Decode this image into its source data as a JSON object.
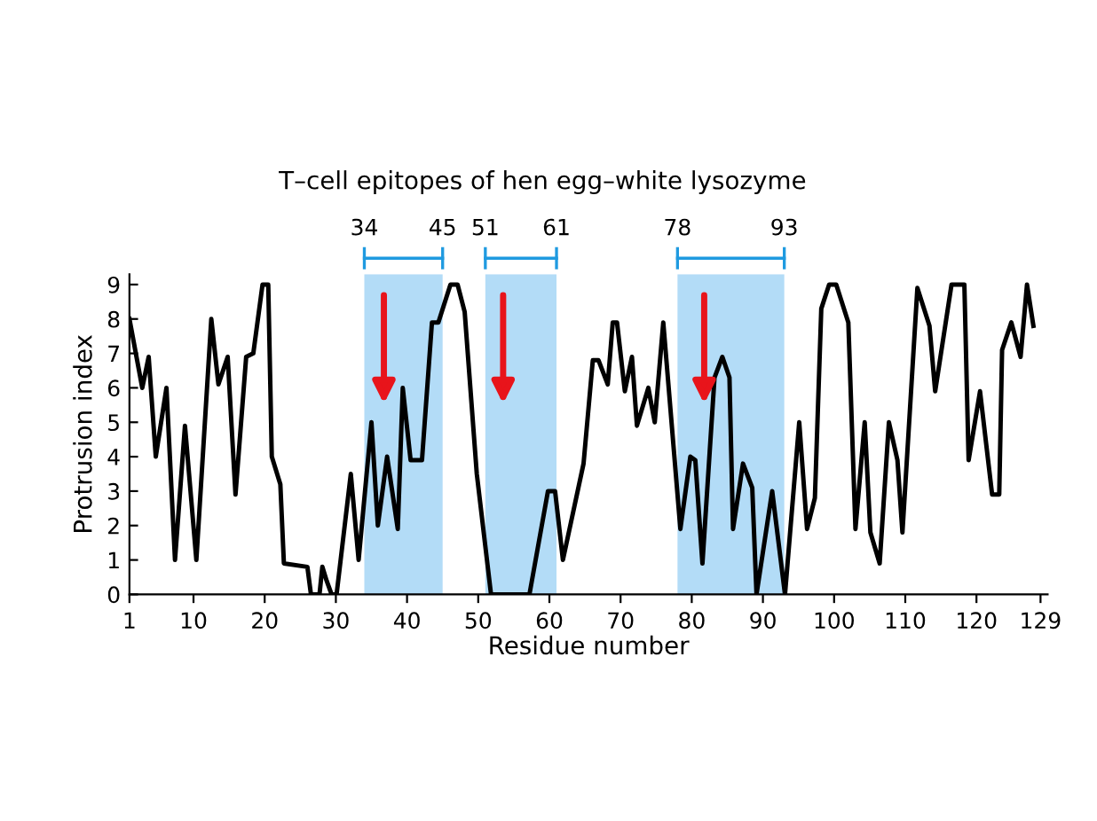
{
  "chart_data": {
    "type": "line",
    "title": "T–cell epitopes of hen egg–white lysozyme",
    "xlabel": "Residue number",
    "ylabel": "Protrusion index",
    "x": [
      1.0,
      2.8,
      3.7,
      4.7,
      6.2,
      7.4,
      8.8,
      10.4,
      12.5,
      13.5,
      14.8,
      15.9,
      17.4,
      18.4,
      19.7,
      20.5,
      21.0,
      22.2,
      22.7,
      26.0,
      26.5,
      27.7,
      28.1,
      28.7,
      29.4,
      30.1,
      32.1,
      33.2,
      35.0,
      35.9,
      37.2,
      38.7,
      39.4,
      40.5,
      42.1,
      43.5,
      44.4,
      46.1,
      47.1,
      48.1,
      49.8,
      51.8,
      57.2,
      59.8,
      60.8,
      61.9,
      64.8,
      66.1,
      66.9,
      68.2,
      68.9,
      69.5,
      70.6,
      71.6,
      72.3,
      73.9,
      74.8,
      76.0,
      78.4,
      79.8,
      80.5,
      81.5,
      83.2,
      84.3,
      85.3,
      85.8,
      87.2,
      88.5,
      89.1,
      91.3,
      93.1,
      95.1,
      96.2,
      97.3,
      98.2,
      99.3,
      100.3,
      102.0,
      103.0,
      104.3,
      105.1,
      106.4,
      107.7,
      108.9,
      109.6,
      111.7,
      113.4,
      114.2,
      116.5,
      118.3,
      118.9,
      120.5,
      122.2,
      123.2,
      123.6,
      124.9,
      126.2,
      127.1,
      128.0
    ],
    "series": [
      {
        "color": "#000000",
        "values": [
          8.0,
          6.0,
          6.9,
          4.0,
          6.0,
          1.0,
          4.9,
          1.0,
          8.0,
          6.1,
          6.9,
          2.9,
          6.9,
          7.0,
          9.0,
          9.0,
          4.0,
          3.2,
          0.9,
          0.8,
          0,
          0,
          0.8,
          0.4,
          0,
          0,
          3.5,
          1.0,
          5.0,
          2.0,
          4.0,
          1.9,
          6.0,
          3.9,
          3.9,
          7.9,
          7.9,
          9.0,
          9.0,
          8.2,
          3.5,
          0,
          0,
          3.0,
          3.0,
          1.0,
          3.8,
          6.8,
          6.8,
          6.1,
          7.9,
          7.9,
          5.9,
          6.9,
          4.9,
          6.0,
          5.0,
          7.9,
          1.9,
          4.0,
          3.9,
          0.9,
          6.3,
          6.9,
          6.3,
          1.9,
          3.8,
          3.1,
          0,
          3.0,
          0,
          5.0,
          1.9,
          2.8,
          8.3,
          9.0,
          9.0,
          7.9,
          1.9,
          5.0,
          1.8,
          0.9,
          5.0,
          3.9,
          1.8,
          8.9,
          7.8,
          5.9,
          9.0,
          9.0,
          3.9,
          5.9,
          2.9,
          2.9,
          7.1,
          7.9,
          6.9,
          9.0,
          7.8
        ]
      }
    ],
    "xlim": [
      1,
      130
    ],
    "ylim": [
      0,
      9.3
    ],
    "xticks": [
      1,
      10,
      20,
      30,
      40,
      50,
      60,
      70,
      80,
      90,
      100,
      110,
      120,
      129
    ],
    "yticks": [
      0,
      1,
      2,
      3,
      4,
      5,
      6,
      7,
      8,
      9
    ],
    "bands": [
      {
        "axis": "x",
        "from": 34,
        "to": 45,
        "color": "#b3dcf7"
      },
      {
        "axis": "x",
        "from": 51,
        "to": 61,
        "color": "#b3dcf7"
      },
      {
        "axis": "x",
        "from": 78,
        "to": 93,
        "color": "#b3dcf7"
      }
    ],
    "x2lim": [
      1,
      130
    ],
    "x2ticks": [
      34,
      45,
      51,
      61,
      78,
      93
    ],
    "grid": false,
    "legend": false,
    "marker": "none",
    "line_style": "solid"
  }
}
